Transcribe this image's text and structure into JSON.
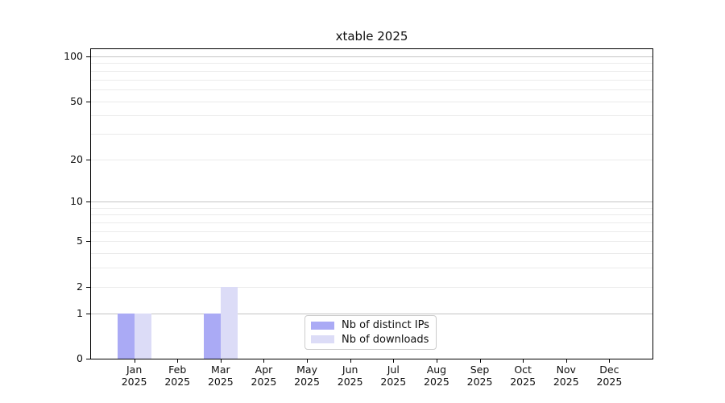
{
  "figure": {
    "background": "#ffffff"
  },
  "chart_data": {
    "type": "bar",
    "title": "xtable 2025",
    "xlabel": "",
    "ylabel": "",
    "categories": [
      "Jan",
      "Feb",
      "Mar",
      "Apr",
      "May",
      "Jun",
      "Jul",
      "Aug",
      "Sep",
      "Oct",
      "Nov",
      "Dec"
    ],
    "category_year": "2025",
    "series": [
      {
        "name": "Nb of distinct IPs",
        "color": "#aaaaf5",
        "values": [
          1,
          0,
          1,
          0,
          0,
          0,
          0,
          0,
          0,
          0,
          0,
          0
        ]
      },
      {
        "name": "Nb of downloads",
        "color": "#dcdcf7",
        "values": [
          1,
          0,
          2,
          0,
          0,
          0,
          0,
          0,
          0,
          0,
          0,
          0
        ]
      }
    ],
    "yscale": "log1p",
    "ylim": [
      0,
      112
    ],
    "yticks": [
      0,
      1,
      2,
      5,
      10,
      20,
      50,
      100
    ],
    "major_gridlines": [
      1,
      10,
      100
    ],
    "minor_gridlines": [
      2,
      3,
      4,
      5,
      6,
      7,
      8,
      9,
      20,
      30,
      40,
      50,
      60,
      70,
      80,
      90
    ],
    "grid": true,
    "legend": {
      "position": "inside-bottom-center",
      "entries": [
        "Nb of distinct IPs",
        "Nb of downloads"
      ]
    },
    "colors": {
      "major_grid": "#c4c4c4",
      "minor_grid": "#ebebeb",
      "axis": "#000000",
      "text": "#0f0f0f"
    }
  }
}
